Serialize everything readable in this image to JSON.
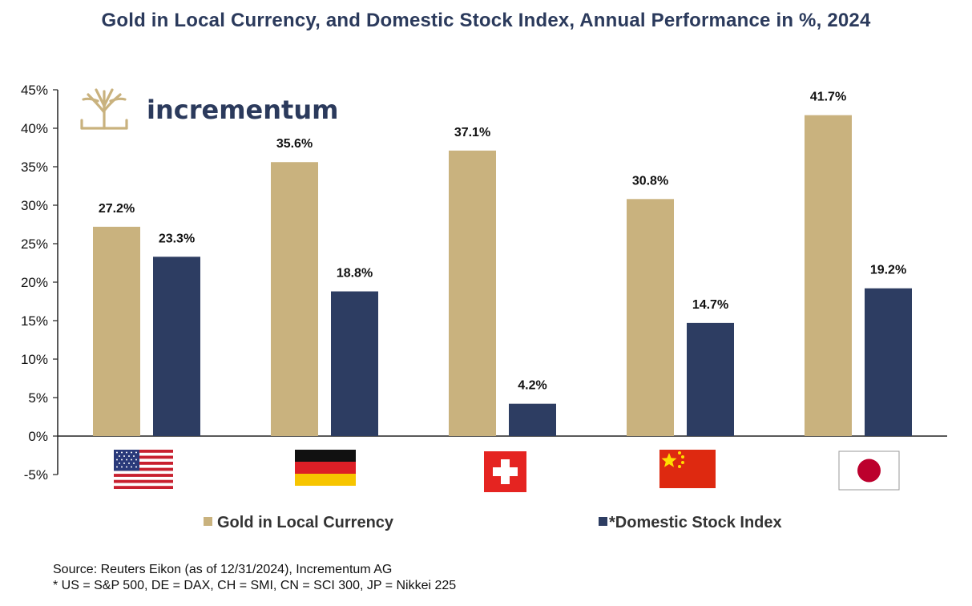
{
  "chart_data": {
    "type": "bar",
    "title": "Gold in Local Currency, and Domestic Stock Index, Annual Performance in %, 2024",
    "categories": [
      "US",
      "DE",
      "CH",
      "CN",
      "JP"
    ],
    "series": [
      {
        "name": "Gold in Local Currency",
        "color": "#c9b27e",
        "values": [
          27.2,
          35.6,
          37.1,
          30.8,
          41.7
        ],
        "labels": [
          "27.2%",
          "35.6%",
          "37.1%",
          "30.8%",
          "41.7%"
        ]
      },
      {
        "name": "*Domestic Stock Index",
        "color": "#2d3d62",
        "values": [
          23.3,
          18.8,
          4.2,
          14.7,
          19.2
        ],
        "labels": [
          "23.3%",
          "18.8%",
          "4.2%",
          "14.7%",
          "19.2%"
        ]
      }
    ],
    "ylim": [
      -5,
      45
    ],
    "yticks": [
      45,
      40,
      35,
      30,
      25,
      20,
      15,
      10,
      5,
      0,
      -5
    ],
    "ytick_labels": [
      "45%",
      "40%",
      "35%",
      "30%",
      "25%",
      "20%",
      "15%",
      "10%",
      "5%",
      "0%",
      "-5%"
    ],
    "xlabel": "",
    "ylabel": "",
    "grid": false,
    "legend_position": "bottom-center",
    "category_icons": [
      "us-flag-icon",
      "germany-flag-icon",
      "switzerland-flag-icon",
      "china-flag-icon",
      "japan-flag-icon"
    ]
  },
  "logo": {
    "text": "incrementum",
    "icon": "tree-icon"
  },
  "footer": {
    "source": "Source: Reuters Eikon (as of 12/31/2024), Incrementum AG",
    "note": "* US = S&P 500, DE = DAX, CH = SMI, CN = SCI 300, JP = Nikkei 225"
  }
}
